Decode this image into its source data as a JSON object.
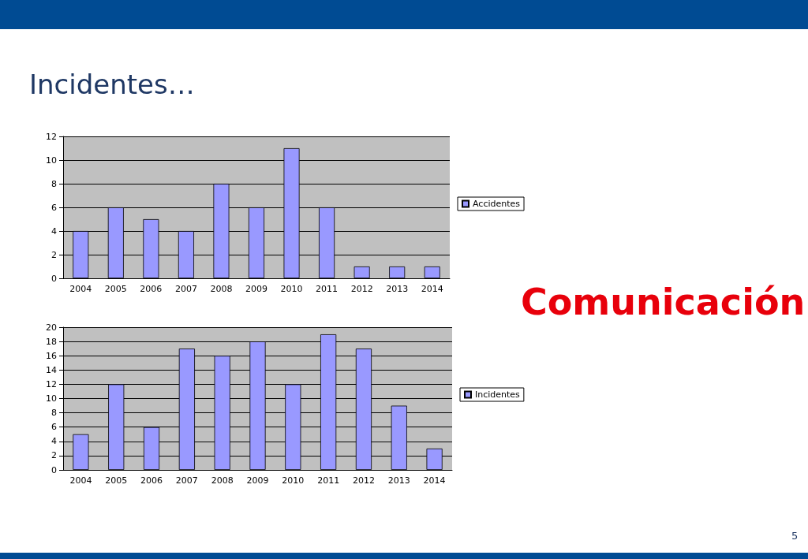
{
  "chart_data": [
    {
      "type": "bar",
      "title": "Incidentes…",
      "categories": [
        "2004",
        "2005",
        "2006",
        "2007",
        "2008",
        "2009",
        "2010",
        "2011",
        "2012",
        "2013",
        "2014"
      ],
      "series": [
        {
          "name": "Accidentes",
          "color": "#9999ff",
          "values": [
            4,
            6,
            5,
            4,
            8,
            6,
            11,
            6,
            1,
            1,
            1
          ]
        }
      ],
      "ylim": [
        0,
        12
      ],
      "yticks": [
        0,
        2,
        4,
        6,
        8,
        10,
        12
      ],
      "grid": "y",
      "legend": "right"
    },
    {
      "type": "bar",
      "categories": [
        "2004",
        "2005",
        "2006",
        "2007",
        "2008",
        "2009",
        "2010",
        "2011",
        "2012",
        "2013",
        "2014"
      ],
      "series": [
        {
          "name": "Incidentes",
          "color": "#9999ff",
          "values": [
            5,
            12,
            6,
            17,
            16,
            18,
            12,
            19,
            17,
            9,
            3
          ]
        }
      ],
      "ylim": [
        0,
        20
      ],
      "yticks": [
        0,
        2,
        4,
        6,
        8,
        10,
        12,
        14,
        16,
        18,
        20
      ],
      "grid": "y",
      "legend": "right",
      "annotations": [
        "Comunicación",
        "5"
      ]
    }
  ]
}
